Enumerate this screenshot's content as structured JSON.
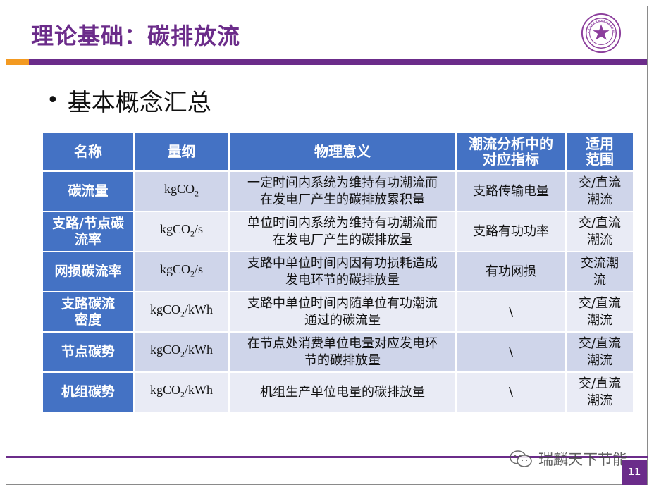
{
  "slide": {
    "title": "理论基础：碳排放流",
    "bullet": "基本概念汇总",
    "page_number": "11",
    "watermark": "瑞麟天下节能"
  },
  "table": {
    "headers": [
      {
        "line1": "名称"
      },
      {
        "line1": "量纲"
      },
      {
        "line1": "物理意义"
      },
      {
        "line1": "潮流分析中的",
        "line2": "对应指标"
      },
      {
        "line1": "适用",
        "line2": "范围"
      }
    ],
    "rows": [
      {
        "name": [
          "碳流量"
        ],
        "unit": {
          "base": "kgCO",
          "sub": "2",
          "suffix": ""
        },
        "meaning": [
          "一定时间内系统为维持有功潮流而",
          "在发电厂产生的碳排放累积量"
        ],
        "indicator": "支路传输电量",
        "scope": [
          "交/直流",
          "潮流"
        ]
      },
      {
        "name": [
          "支路/节点碳",
          "流率"
        ],
        "unit": {
          "base": "kgCO",
          "sub": "2",
          "suffix": "/s"
        },
        "meaning": [
          "单位时间内系统为维持有功潮流而",
          "在发电厂产生的碳排放量"
        ],
        "indicator": "支路有功功率",
        "scope": [
          "交/直流",
          "潮流"
        ]
      },
      {
        "name": [
          "网损碳流率"
        ],
        "unit": {
          "base": "kgCO",
          "sub": "2",
          "suffix": "/s"
        },
        "meaning": [
          "支路中单位时间内因有功损耗造成",
          "发电环节的碳排放量"
        ],
        "indicator": "有功网损",
        "scope": [
          "交流潮",
          "流"
        ]
      },
      {
        "name": [
          "支路碳流",
          "密度"
        ],
        "unit": {
          "base": "kgCO",
          "sub": "2",
          "suffix": "/kWh"
        },
        "meaning": [
          "支路中单位时间内随单位有功潮流",
          "通过的碳流量"
        ],
        "indicator": "\\",
        "scope": [
          "交/直流",
          "潮流"
        ]
      },
      {
        "name": [
          "节点碳势"
        ],
        "unit": {
          "base": "kgCO",
          "sub": "2",
          "suffix": "/kWh"
        },
        "meaning": [
          "在节点处消费单位电量对应发电环",
          "节的碳排放量"
        ],
        "indicator": "\\",
        "scope": [
          "交/直流",
          "潮流"
        ]
      },
      {
        "name": [
          "机组碳势"
        ],
        "unit": {
          "base": "kgCO",
          "sub": "2",
          "suffix": "/kWh"
        },
        "meaning": [
          "机组生产单位电量的碳排放量"
        ],
        "indicator": "\\",
        "scope": [
          "交/直流",
          "潮流"
        ]
      }
    ]
  },
  "colors": {
    "title_purple": "#6b2c8a",
    "accent_orange": "#f39a21",
    "header_blue": "#4472c4",
    "row_dark": "#cfd5ea",
    "row_light": "#e9ebf5"
  },
  "icons": {
    "logo": "university-seal-icon",
    "watermark": "wechat-icon"
  }
}
